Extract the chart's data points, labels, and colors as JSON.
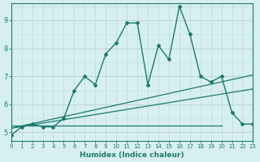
{
  "xlabel": "Humidex (Indice chaleur)",
  "ylabel": "",
  "bg_color": "#d8eff0",
  "line_color": "#1a7a6e",
  "grid_color_major": "#b8dfe0",
  "pink_grid_color": "#e8b8b8",
  "xlim": [
    0,
    23
  ],
  "ylim": [
    4.7,
    9.6
  ],
  "xticks": [
    0,
    1,
    2,
    3,
    4,
    5,
    6,
    7,
    8,
    9,
    10,
    11,
    12,
    13,
    14,
    15,
    16,
    17,
    18,
    19,
    20,
    21,
    22,
    23
  ],
  "yticks": [
    5,
    6,
    7,
    8,
    9
  ],
  "main_line": {
    "x": [
      0,
      1,
      2,
      3,
      4,
      5,
      6,
      7,
      8,
      9,
      10,
      11,
      12,
      13,
      14,
      15,
      16,
      17,
      18,
      19,
      20,
      21,
      22,
      23
    ],
    "y": [
      4.9,
      5.2,
      5.3,
      5.2,
      5.2,
      5.5,
      6.5,
      7.0,
      6.7,
      7.8,
      8.2,
      8.9,
      8.9,
      6.7,
      8.1,
      7.6,
      9.5,
      8.5,
      7.0,
      6.8,
      7.0,
      5.7,
      5.3,
      5.3
    ]
  },
  "line_low": {
    "x": [
      0,
      23
    ],
    "y": [
      5.15,
      6.55
    ]
  },
  "line_high": {
    "x": [
      0,
      23
    ],
    "y": [
      5.15,
      7.05
    ]
  },
  "flat_line": {
    "x": [
      0,
      20
    ],
    "y": [
      5.25,
      5.25
    ]
  }
}
